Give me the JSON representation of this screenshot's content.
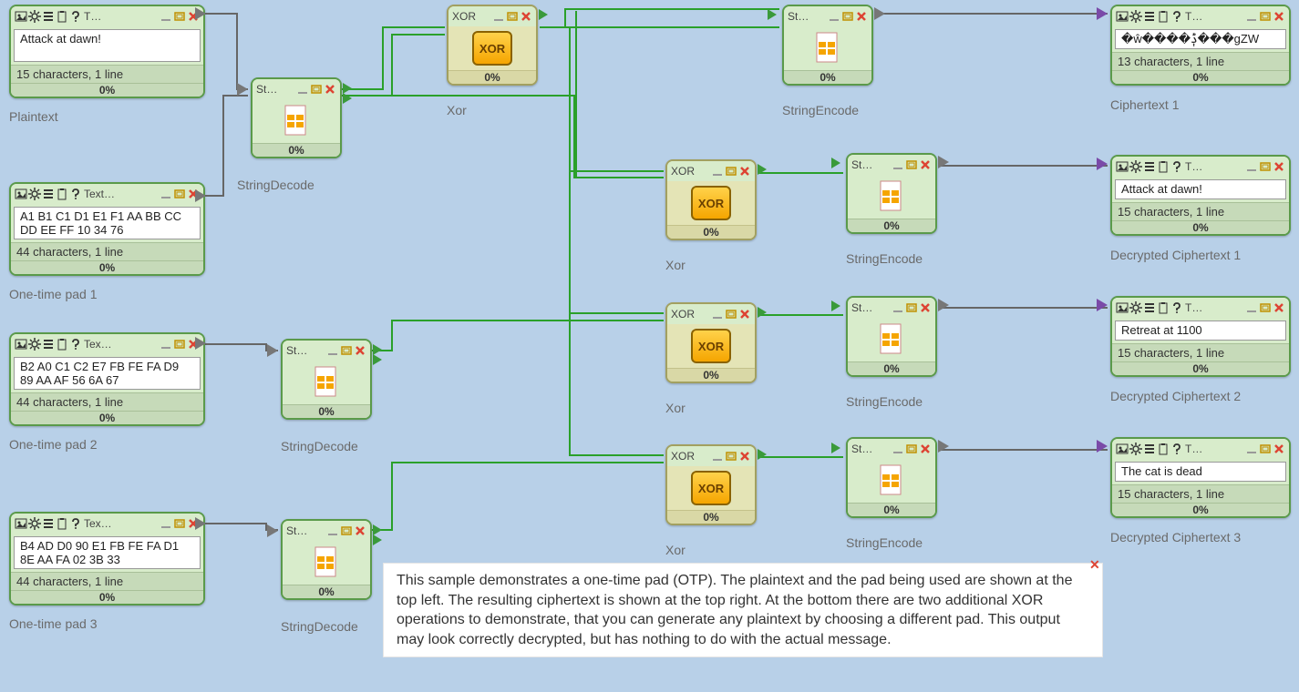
{
  "colors": {
    "canvas_bg": "#b8d0e8",
    "node_bg": "#d8eccb",
    "node_border": "#5a9a4a",
    "xor_bg": "#e4e4b6",
    "xor_border": "#a2a060",
    "wire_green": "#2aa02a",
    "wire_dark": "#666666",
    "wire_purple": "#7a4aa8",
    "label_gray": "#6a6a6a"
  },
  "annotation": {
    "text": "This sample demonstrates a one-time pad (OTP). The plaintext and the pad being used are shown at the top left. The resulting ciphertext is shown at the top right. At the bottom there are two additional XOR operations to demonstrate, that you can generate any plaintext by choosing a different pad. This output may look correctly decrypted, but has nothing to do with the actual message.",
    "close": "✕"
  },
  "titles": {
    "text_short": "T…",
    "text_med": "Tex…",
    "text_long": "Text…",
    "str": "St…",
    "xor": "XOR"
  },
  "pct": "0%",
  "textinputs": {
    "plaintext": {
      "value": "Attack at dawn!",
      "stats": "15 characters,  1 line",
      "label": "Plaintext"
    },
    "otp1": {
      "value": "A1 B1 C1 D1 E1 F1 AA BB CC DD EE FF 10 34 76",
      "stats": "44 characters,  1 line",
      "label": "One-time pad 1"
    },
    "otp2": {
      "value": "B2 A0 C1 C2 E7 FB FE FA D9 89 AA AF 56 6A 67",
      "stats": "44 characters,  1 line",
      "label": "One-time pad 2"
    },
    "otp3": {
      "value": "B4 AD D0 90 E1 FB FE FA D1 8E AA FA 02 3B 33",
      "stats": "44 characters,  1 line",
      "label": "One-time pad 3"
    }
  },
  "textoutputs": {
    "ct1": {
      "value": "�ŵ����ݙ���gZW",
      "stats": "13 characters,  1 line",
      "label": "Ciphertext 1"
    },
    "dec1": {
      "value": "Attack at dawn!",
      "stats": "15 characters,  1 line",
      "label": "Decrypted Ciphertext 1"
    },
    "dec2": {
      "value": "Retreat at 1100",
      "stats": "15 characters,  1 line",
      "label": "Decrypted Ciphertext 2"
    },
    "dec3": {
      "value": "The cat is dead",
      "stats": "15 characters,  1 line",
      "label": "Decrypted Ciphertext 3"
    }
  },
  "subnodes": {
    "stringdecode_label": "StringDecode",
    "stringencode_label": "StringEncode",
    "xor_label": "Xor"
  },
  "icons_title": [
    "picture",
    "gear",
    "list",
    "clipboard",
    "help"
  ],
  "winbtns": [
    "min",
    "expand",
    "close"
  ]
}
